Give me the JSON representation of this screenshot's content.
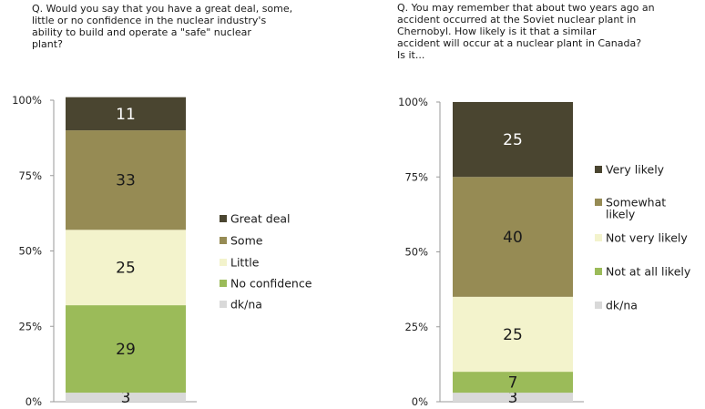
{
  "colors": {
    "very_dark": "#4a4530",
    "olive": "#968b54",
    "cream": "#f3f3cc",
    "green": "#9bbb59",
    "gray": "#d9d9d9",
    "axis": "#9a9a9a"
  },
  "chart_data": [
    {
      "type": "bar",
      "stacked": true,
      "question": "Q. Would you say that you have a great deal, some,\nlittle or no confidence in the nuclear industry's\nability to build and operate a \"safe\" nuclear\nplant?",
      "yticks": [
        "0%",
        "25%",
        "50%",
        "75%",
        "100%"
      ],
      "ylim": [
        0,
        100
      ],
      "legend_position": "right",
      "series": [
        {
          "name": "dk/na",
          "value": 3,
          "color": "#d9d9d9",
          "label_color": "#1a1a1a"
        },
        {
          "name": "No confidence",
          "value": 29,
          "color": "#9bbb59",
          "label_color": "#1a1a1a"
        },
        {
          "name": "Little",
          "value": 25,
          "color": "#f3f3cc",
          "label_color": "#1a1a1a"
        },
        {
          "name": "Some",
          "value": 33,
          "color": "#968b54",
          "label_color": "#1a1a1a"
        },
        {
          "name": "Great deal",
          "value": 11,
          "color": "#4a4530",
          "label_color": "#ffffff"
        }
      ]
    },
    {
      "type": "bar",
      "stacked": true,
      "question": "Q. You may remember that about two years ago an\naccident occurred at the Soviet nuclear plant in\nChernobyl. How likely is it that a similar\naccident will occur at a nuclear plant in Canada?\nIs it...",
      "yticks": [
        "0%",
        "25%",
        "50%",
        "75%",
        "100%"
      ],
      "ylim": [
        0,
        100
      ],
      "legend_position": "right",
      "series": [
        {
          "name": "dk/na",
          "value": 3,
          "color": "#d9d9d9",
          "label_color": "#1a1a1a"
        },
        {
          "name": "Not at all likely",
          "value": 7,
          "color": "#9bbb59",
          "label_color": "#1a1a1a"
        },
        {
          "name": "Not very likely",
          "value": 25,
          "color": "#f3f3cc",
          "label_color": "#1a1a1a"
        },
        {
          "name": "Somewhat\nlikely",
          "value": 40,
          "color": "#968b54",
          "label_color": "#1a1a1a"
        },
        {
          "name": "Very likely",
          "value": 25,
          "color": "#4a4530",
          "label_color": "#ffffff"
        }
      ]
    }
  ]
}
